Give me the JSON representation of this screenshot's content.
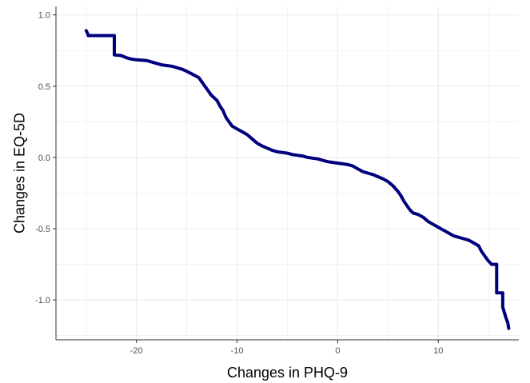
{
  "chart_data": {
    "type": "line",
    "xlabel": "Changes in PHQ-9",
    "ylabel": "Changes in EQ-5D",
    "xlim": [
      -28,
      18
    ],
    "ylim": [
      -1.28,
      1.06
    ],
    "x_ticks": [
      -20,
      -10,
      0,
      10
    ],
    "x_tick_labels": [
      "-20",
      "-10",
      "0",
      "10"
    ],
    "y_ticks": [
      1.0,
      0.5,
      0.0,
      -0.5,
      -1.0
    ],
    "y_tick_labels": [
      "1.0",
      "0.5",
      "0.0",
      "-0.5",
      "-1.0"
    ],
    "grid": true,
    "line_color": "#00007f",
    "grid_color": "#ebebeb",
    "series": [
      {
        "x": [
          -25,
          -24.8,
          -24.8,
          -22.2,
          -22.2,
          -21.5,
          -21,
          -20.5,
          -20,
          -19,
          -18,
          -17.5,
          -17,
          -16.5,
          -16,
          -15.5,
          -15,
          -14.6,
          -14.2,
          -13.8,
          -13.5,
          -13.2,
          -12.9,
          -12.6,
          -12.3,
          -12,
          -11.7,
          -11.4,
          -11.1,
          -10.8,
          -10.5,
          -10,
          -9.5,
          -9,
          -8.5,
          -8,
          -7.5,
          -7,
          -6.5,
          -6,
          -5.5,
          -5,
          -4.5,
          -4,
          -3.5,
          -3,
          -2.5,
          -2,
          -1.5,
          -1,
          -0.5,
          0,
          0.5,
          1,
          1.5,
          2,
          2.5,
          3,
          3.5,
          4,
          4.5,
          5,
          5.5,
          6,
          6.3,
          6.6,
          6.9,
          7.2,
          7.5,
          8,
          8.5,
          9,
          9.5,
          10,
          10.5,
          11,
          11.5,
          12,
          12.5,
          13,
          13.5,
          14,
          14.3,
          14.6,
          14.9,
          15.3,
          15.3,
          15.8,
          15.8,
          16.4,
          16.4,
          16.7,
          16.9,
          17
        ],
        "y": [
          0.89,
          0.86,
          0.855,
          0.855,
          0.72,
          0.715,
          0.7,
          0.69,
          0.685,
          0.68,
          0.66,
          0.65,
          0.645,
          0.64,
          0.63,
          0.62,
          0.605,
          0.59,
          0.575,
          0.56,
          0.53,
          0.5,
          0.47,
          0.44,
          0.42,
          0.4,
          0.36,
          0.33,
          0.28,
          0.25,
          0.22,
          0.2,
          0.18,
          0.16,
          0.13,
          0.1,
          0.08,
          0.065,
          0.05,
          0.04,
          0.035,
          0.03,
          0.02,
          0.015,
          0.01,
          0.0,
          -0.005,
          -0.01,
          -0.02,
          -0.03,
          -0.035,
          -0.04,
          -0.045,
          -0.05,
          -0.06,
          -0.08,
          -0.1,
          -0.11,
          -0.12,
          -0.135,
          -0.15,
          -0.17,
          -0.2,
          -0.24,
          -0.27,
          -0.31,
          -0.34,
          -0.37,
          -0.39,
          -0.4,
          -0.42,
          -0.45,
          -0.47,
          -0.49,
          -0.51,
          -0.53,
          -0.55,
          -0.56,
          -0.57,
          -0.58,
          -0.6,
          -0.62,
          -0.66,
          -0.69,
          -0.72,
          -0.75,
          -0.75,
          -0.75,
          -0.95,
          -0.95,
          -1.05,
          -1.12,
          -1.16,
          -1.2
        ]
      }
    ]
  }
}
